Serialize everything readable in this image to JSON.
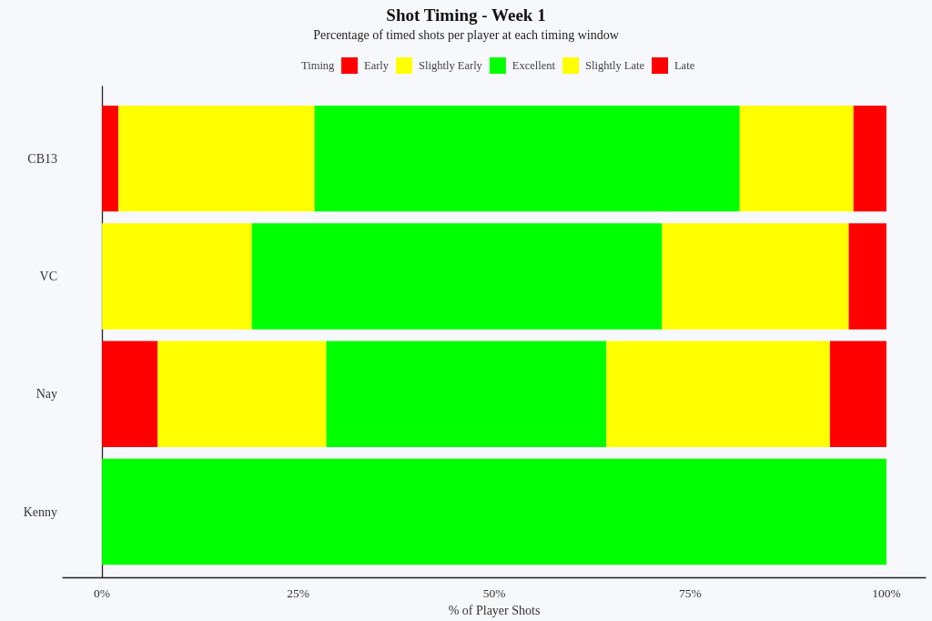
{
  "chart_data": {
    "type": "bar",
    "title": "Shot Timing - Week 1",
    "subtitle": "Percentage of timed shots per player at each timing window",
    "xlabel": "% of Player Shots",
    "legend_title": "Timing",
    "legend": "top",
    "orientation": "horizontal",
    "stacked": true,
    "categories": [
      "CB13",
      "VC",
      "Nay",
      "Kenny"
    ],
    "series": [
      {
        "name": "Early",
        "color": "#ff0000",
        "values": [
          2.1,
          0,
          7.1,
          0
        ]
      },
      {
        "name": "Slightly Early",
        "color": "#ffff00",
        "values": [
          25.0,
          19.1,
          21.5,
          0
        ]
      },
      {
        "name": "Excellent",
        "color": "#00ff00",
        "values": [
          54.2,
          52.3,
          35.7,
          100
        ]
      },
      {
        "name": "Slightly Late",
        "color": "#ffff00",
        "values": [
          14.5,
          23.8,
          28.5,
          0
        ]
      },
      {
        "name": "Late",
        "color": "#ff0000",
        "values": [
          4.2,
          4.8,
          7.2,
          0
        ]
      }
    ],
    "xlim": [
      -5,
      105
    ],
    "xticks": [
      {
        "value": 0,
        "label": "0%"
      },
      {
        "value": 25,
        "label": "25%"
      },
      {
        "value": 50,
        "label": "50%"
      },
      {
        "value": 75,
        "label": "75%"
      },
      {
        "value": 100,
        "label": "100%"
      }
    ]
  }
}
